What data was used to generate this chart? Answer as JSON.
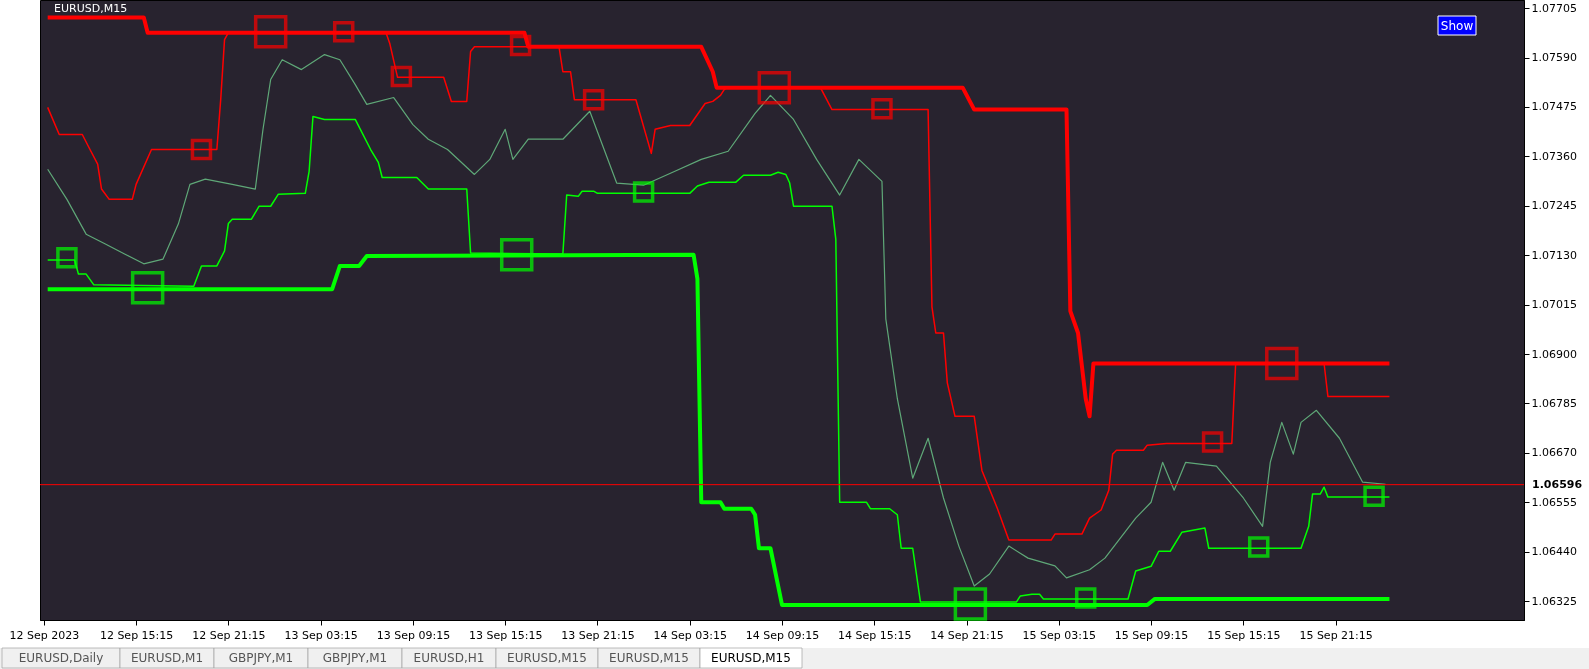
{
  "chart_data": {
    "type": "line",
    "title": "EURUSD,M15",
    "annotations": [
      "Show",
      "EURUSD,Daily",
      "EURUSD,M1",
      "GBPJPY,M1",
      "GBPJPY,M1",
      "EURUSD,H1",
      "EURUSD,M15",
      "EURUSD,M15",
      "EURUSD,M15"
    ],
    "xlim": [
      "2023-09-12T09:00",
      "2023-09-16T09:30"
    ],
    "xticks": [
      {
        "value": "2023-09-12T09:15",
        "label": "12 Sep 2023"
      },
      {
        "value": "2023-09-12T15:15",
        "label": "12 Sep 15:15"
      },
      {
        "value": "2023-09-12T21:15",
        "label": "12 Sep 21:15"
      },
      {
        "value": "2023-09-13T03:15",
        "label": "13 Sep 03:15"
      },
      {
        "value": "2023-09-13T09:15",
        "label": "13 Sep 09:15"
      },
      {
        "value": "2023-09-13T15:15",
        "label": "13 Sep 15:15"
      },
      {
        "value": "2023-09-13T21:15",
        "label": "13 Sep 21:15"
      },
      {
        "value": "2023-09-14T03:15",
        "label": "14 Sep 03:15"
      },
      {
        "value": "2023-09-14T09:15",
        "label": "14 Sep 09:15"
      },
      {
        "value": "2023-09-14T15:15",
        "label": "14 Sep 15:15"
      },
      {
        "value": "2023-09-14T21:15",
        "label": "14 Sep 21:15"
      },
      {
        "value": "2023-09-15T03:15",
        "label": "15 Sep 03:15"
      },
      {
        "value": "2023-09-15T09:15",
        "label": "15 Sep 09:15"
      },
      {
        "value": "2023-09-15T15:15",
        "label": "15 Sep 15:15"
      },
      {
        "value": "2023-09-15T21:15",
        "label": "15 Sep 21:15"
      }
    ],
    "ylim": [
      1.06281,
      1.07724
    ],
    "yticks": [
      1.07705,
      {
        "value": 1.0759,
        "label": "1.07590"
      },
      1.07475,
      {
        "value": 1.0736,
        "label": "1.07360"
      },
      1.07245,
      {
        "value": 1.0713,
        "label": "1.07130"
      },
      1.07015,
      {
        "value": 1.069,
        "label": "1.06900"
      },
      1.06785,
      {
        "value": 1.0667,
        "label": "1.06670"
      },
      1.06555,
      {
        "value": 1.0644,
        "label": "1.06440"
      },
      1.06325
    ],
    "ref_lines": [
      {
        "axis": "y",
        "value": 1.06596,
        "label": "1.06596",
        "color": "#ff0000"
      }
    ],
    "series": [
      {
        "color": "#ff0000",
        "x": [
          "2023-09-12T09:30",
          "2023-09-12T15:45",
          "2023-09-12T16:00",
          "2023-09-13T16:30",
          "2023-09-13T16:45",
          "2023-09-14T04:00",
          "2023-09-14T04:45",
          "2023-09-14T05:00",
          "2023-09-14T21:00",
          "2023-09-14T21:45",
          "2023-09-15T03:45",
          "2023-09-15T04:00",
          "2023-09-15T04:30",
          "2023-09-15T05:00",
          "2023-09-15T05:15",
          "2023-09-15T05:30",
          "2023-09-16T00:45"
        ],
        "values": [
          1.07683,
          1.07683,
          1.07648,
          1.07648,
          1.07615,
          1.07615,
          1.07557,
          1.0752,
          1.0752,
          1.07469,
          1.07469,
          1.07,
          1.06949,
          1.06796,
          1.06755,
          1.06878,
          1.06878
        ]
      },
      {
        "color": "#ff0000",
        "x": [
          "2023-09-12T09:30",
          "2023-09-12T10:15",
          "2023-09-12T11:45",
          "2023-09-12T12:15",
          "2023-09-12T12:45",
          "2023-09-12T13:00",
          "2023-09-12T13:30",
          "2023-09-12T15:00",
          "2023-09-12T15:15",
          "2023-09-12T16:15",
          "2023-09-12T20:30",
          "2023-09-12T20:45",
          "2023-09-12T21:00",
          "2023-09-12T21:15",
          "2023-09-13T07:30",
          "2023-09-13T07:45",
          "2023-09-13T08:15",
          "2023-09-13T11:15",
          "2023-09-13T11:45",
          "2023-09-13T12:45",
          "2023-09-13T13:00",
          "2023-09-13T13:15",
          "2023-09-13T18:45",
          "2023-09-13T19:00",
          "2023-09-13T19:30",
          "2023-09-13T19:45",
          "2023-09-13T23:45",
          "2023-09-14T00:45",
          "2023-09-14T01:00",
          "2023-09-14T02:00",
          "2023-09-14T03:15",
          "2023-09-14T04:15",
          "2023-09-14T04:45",
          "2023-09-14T05:15",
          "2023-09-14T05:30",
          "2023-09-14T05:45",
          "2023-09-14T11:45",
          "2023-09-14T12:30",
          "2023-09-14T18:45",
          "2023-09-14T19:00",
          "2023-09-14T19:15",
          "2023-09-14T19:45",
          "2023-09-14T20:00",
          "2023-09-14T20:30",
          "2023-09-14T21:45",
          "2023-09-14T22:15",
          "2023-09-14T23:15",
          "2023-09-15T00:00",
          "2023-09-15T02:45",
          "2023-09-15T03:00",
          "2023-09-15T04:45",
          "2023-09-15T05:15",
          "2023-09-15T06:00",
          "2023-09-15T06:30",
          "2023-09-15T06:45",
          "2023-09-15T07:00",
          "2023-09-15T08:45",
          "2023-09-15T09:00",
          "2023-09-15T10:15",
          "2023-09-15T14:30",
          "2023-09-15T14:45",
          "2023-09-15T20:30",
          "2023-09-15T20:45",
          "2023-09-16T00:45"
        ],
        "values": [
          1.07474,
          1.07411,
          1.07411,
          1.07376,
          1.07342,
          1.07284,
          1.0726,
          1.0726,
          1.07295,
          1.07376,
          1.07376,
          1.07492,
          1.07632,
          1.07648,
          1.07648,
          1.07622,
          1.07544,
          1.07544,
          1.07488,
          1.07488,
          1.07604,
          1.07615,
          1.07615,
          1.07557,
          1.07557,
          1.07492,
          1.07492,
          1.07367,
          1.07423,
          1.07432,
          1.07432,
          1.07483,
          1.07488,
          1.07502,
          1.07516,
          1.0752,
          1.0752,
          1.07469,
          1.07469,
          1.0701,
          1.06949,
          1.06949,
          1.06833,
          1.06755,
          1.06755,
          1.06629,
          1.06541,
          1.06467,
          1.06467,
          1.06481,
          1.06481,
          1.06518,
          1.06537,
          1.06583,
          1.06667,
          1.06676,
          1.06676,
          1.06688,
          1.06692,
          1.06692,
          1.06878,
          1.06878,
          1.06801,
          1.06801
        ]
      },
      {
        "color": "#00ff00",
        "x": [
          "2023-09-12T09:30",
          "2023-09-12T11:15",
          "2023-09-12T11:30",
          "2023-09-12T12:00",
          "2023-09-12T12:30",
          "2023-09-12T19:00",
          "2023-09-12T19:30",
          "2023-09-12T20:30",
          "2023-09-12T21:00",
          "2023-09-12T21:15",
          "2023-09-12T21:30",
          "2023-09-12T22:45",
          "2023-09-12T23:15",
          "2023-09-13T00:00",
          "2023-09-13T00:30",
          "2023-09-13T02:15",
          "2023-09-13T02:30",
          "2023-09-13T02:45",
          "2023-09-13T03:30",
          "2023-09-13T05:30",
          "2023-09-13T06:30",
          "2023-09-13T07:00",
          "2023-09-13T07:15",
          "2023-09-13T09:30",
          "2023-09-13T10:15",
          "2023-09-13T12:45",
          "2023-09-13T13:00",
          "2023-09-13T19:00",
          "2023-09-13T19:15",
          "2023-09-13T20:00",
          "2023-09-13T20:15",
          "2023-09-13T21:00",
          "2023-09-13T21:15",
          "2023-09-14T03:15",
          "2023-09-14T03:45",
          "2023-09-14T04:30",
          "2023-09-14T06:15",
          "2023-09-14T06:45",
          "2023-09-14T08:30",
          "2023-09-14T09:00",
          "2023-09-14T09:30",
          "2023-09-14T09:45",
          "2023-09-14T10:00",
          "2023-09-14T12:30",
          "2023-09-14T12:45",
          "2023-09-14T13:00",
          "2023-09-14T14:45",
          "2023-09-14T15:00",
          "2023-09-14T16:15",
          "2023-09-14T16:45",
          "2023-09-14T17:00",
          "2023-09-14T17:45",
          "2023-09-14T18:15",
          "2023-09-15T00:30",
          "2023-09-15T00:45",
          "2023-09-15T01:30",
          "2023-09-15T02:00",
          "2023-09-15T02:15",
          "2023-09-15T07:45",
          "2023-09-15T08:15",
          "2023-09-15T09:15",
          "2023-09-15T09:45",
          "2023-09-15T10:30",
          "2023-09-15T11:15",
          "2023-09-15T12:45",
          "2023-09-15T13:00",
          "2023-09-15T19:00",
          "2023-09-15T19:30",
          "2023-09-15T19:45",
          "2023-09-15T20:15",
          "2023-09-15T20:30",
          "2023-09-15T20:45",
          "2023-09-16T00:45"
        ],
        "values": [
          1.07119,
          1.07119,
          1.07086,
          1.07086,
          1.07061,
          1.07058,
          1.07105,
          1.07105,
          1.0714,
          1.07204,
          1.07214,
          1.07214,
          1.07244,
          1.07244,
          1.07272,
          1.07274,
          1.07325,
          1.07453,
          1.07446,
          1.07446,
          1.07376,
          1.07346,
          1.07311,
          1.07311,
          1.07284,
          1.07284,
          1.07135,
          1.07133,
          1.0727,
          1.07267,
          1.07279,
          1.07279,
          1.07274,
          1.07274,
          1.07291,
          1.073,
          1.073,
          1.07316,
          1.07316,
          1.07323,
          1.07318,
          1.07298,
          1.07244,
          1.07244,
          1.07167,
          1.06555,
          1.06555,
          1.0654,
          1.0654,
          1.06526,
          1.06448,
          1.06448,
          1.06323,
          1.06323,
          1.06337,
          1.06341,
          1.06341,
          1.0633,
          1.0633,
          1.06395,
          1.06406,
          1.06441,
          1.06441,
          1.06485,
          1.06495,
          1.06448,
          1.06448,
          1.06499,
          1.06574,
          1.06574,
          1.0659,
          1.06567,
          1.06567
        ]
      },
      {
        "color": "#00ff00",
        "x": [
          "2023-09-12T09:30",
          "2023-09-13T04:00",
          "2023-09-13T04:30",
          "2023-09-13T05:45",
          "2023-09-13T06:15",
          "2023-09-14T03:30",
          "2023-09-14T03:45",
          "2023-09-14T04:00",
          "2023-09-14T05:15",
          "2023-09-14T05:30",
          "2023-09-14T07:15",
          "2023-09-14T07:30",
          "2023-09-14T07:45",
          "2023-09-14T08:30",
          "2023-09-14T09:15",
          "2023-09-15T09:00",
          "2023-09-15T09:30",
          "2023-09-16T00:45"
        ],
        "values": [
          1.07051,
          1.07051,
          1.07105,
          1.07105,
          1.07128,
          1.07131,
          1.07075,
          1.06555,
          1.06555,
          1.0654,
          1.0654,
          1.06526,
          1.06448,
          1.06448,
          1.06316,
          1.06316,
          1.0633,
          1.0633
        ]
      },
      {
        "color": "#5fa878",
        "x": [
          "2023-09-12T09:30",
          "2023-09-12T10:45",
          "2023-09-12T12:00",
          "2023-09-12T13:15",
          "2023-09-12T14:30",
          "2023-09-12T15:45",
          "2023-09-12T17:00",
          "2023-09-12T18:00",
          "2023-09-12T18:45",
          "2023-09-12T19:45",
          "2023-09-12T21:30",
          "2023-09-12T23:00",
          "2023-09-12T23:30",
          "2023-09-13T00:00",
          "2023-09-13T00:45",
          "2023-09-13T02:00",
          "2023-09-13T03:30",
          "2023-09-13T04:30",
          "2023-09-13T05:30",
          "2023-09-13T06:15",
          "2023-09-13T08:00",
          "2023-09-13T09:15",
          "2023-09-13T10:15",
          "2023-09-13T11:30",
          "2023-09-13T13:15",
          "2023-09-13T14:15",
          "2023-09-13T15:15",
          "2023-09-13T15:45",
          "2023-09-13T16:45",
          "2023-09-13T19:00",
          "2023-09-13T20:45",
          "2023-09-13T22:30",
          "2023-09-14T00:15",
          "2023-09-14T02:15",
          "2023-09-14T04:00",
          "2023-09-14T05:45",
          "2023-09-14T07:30",
          "2023-09-14T08:30",
          "2023-09-14T10:00",
          "2023-09-14T11:30",
          "2023-09-14T13:00",
          "2023-09-14T14:15",
          "2023-09-14T15:45",
          "2023-09-14T16:00",
          "2023-09-14T16:45",
          "2023-09-14T17:45",
          "2023-09-14T18:45",
          "2023-09-14T19:45",
          "2023-09-14T20:45",
          "2023-09-14T21:45",
          "2023-09-14T22:45",
          "2023-09-15T00:00",
          "2023-09-15T01:15",
          "2023-09-15T03:00",
          "2023-09-15T03:45",
          "2023-09-15T05:15",
          "2023-09-15T06:15",
          "2023-09-15T08:15",
          "2023-09-15T09:15",
          "2023-09-15T10:00",
          "2023-09-15T10:45",
          "2023-09-15T11:30",
          "2023-09-15T13:30",
          "2023-09-15T15:15",
          "2023-09-15T16:30",
          "2023-09-15T17:00",
          "2023-09-15T17:45",
          "2023-09-15T18:30",
          "2023-09-15T19:00",
          "2023-09-15T20:00",
          "2023-09-15T21:30",
          "2023-09-15T23:00",
          "2023-09-16T00:30"
        ],
        "values": [
          1.0733,
          1.0726,
          1.07179,
          1.07156,
          1.07133,
          1.0711,
          1.07121,
          1.07203,
          1.07295,
          1.07307,
          1.07295,
          1.07284,
          1.07423,
          1.07539,
          1.07585,
          1.07562,
          1.07597,
          1.07585,
          1.07527,
          1.07481,
          1.07497,
          1.07434,
          1.074,
          1.07376,
          1.07318,
          1.07353,
          1.07423,
          1.07353,
          1.074,
          1.074,
          1.07465,
          1.07298,
          1.07293,
          1.07325,
          1.07353,
          1.07372,
          1.0746,
          1.07502,
          1.07446,
          1.07353,
          1.0727,
          1.07353,
          1.07302,
          1.06982,
          1.06796,
          1.06611,
          1.06704,
          1.06565,
          1.06453,
          1.0636,
          1.06388,
          1.06453,
          1.06425,
          1.06407,
          1.06379,
          1.06398,
          1.06425,
          1.06518,
          1.06555,
          1.06648,
          1.06583,
          1.06648,
          1.06639,
          1.06565,
          1.06499,
          1.06648,
          1.06741,
          1.06667,
          1.06741,
          1.06769,
          1.06704,
          1.06602,
          1.06597
        ]
      },
      {
        "type": "scatter",
        "marker": "square",
        "color": "#ff0000",
        "x": [
          "2023-09-12T19:30",
          "2023-09-13T00:00",
          "2023-09-13T04:45",
          "2023-09-13T08:30",
          "2023-09-13T16:15",
          "2023-09-13T21:00",
          "2023-09-14T08:45",
          "2023-09-14T15:45",
          "2023-09-15T13:15",
          "2023-09-15T17:45"
        ],
        "values": [
          1.07376,
          1.0765,
          1.0765,
          1.07546,
          1.07618,
          1.07492,
          1.0752,
          1.07471,
          1.06695,
          1.06878
        ],
        "sizes": [
          0.36,
          1,
          0.36,
          0.36,
          0.36,
          0.36,
          1,
          0.36,
          0.36,
          1
        ]
      },
      {
        "type": "scatter",
        "marker": "square",
        "color": "#00ff00",
        "x": [
          "2023-09-12T10:45",
          "2023-09-12T16:00",
          "2023-09-13T16:00",
          "2023-09-14T00:15",
          "2023-09-14T21:30",
          "2023-09-15T05:00",
          "2023-09-15T16:15",
          "2023-09-15T23:45"
        ],
        "values": [
          1.07124,
          1.07054,
          1.07131,
          1.07277,
          1.06318,
          1.06332,
          1.06451,
          1.06569
        ],
        "sizes": [
          0.36,
          1,
          1,
          0.36,
          1,
          0.36,
          0.36,
          0.36
        ]
      }
    ]
  }
}
